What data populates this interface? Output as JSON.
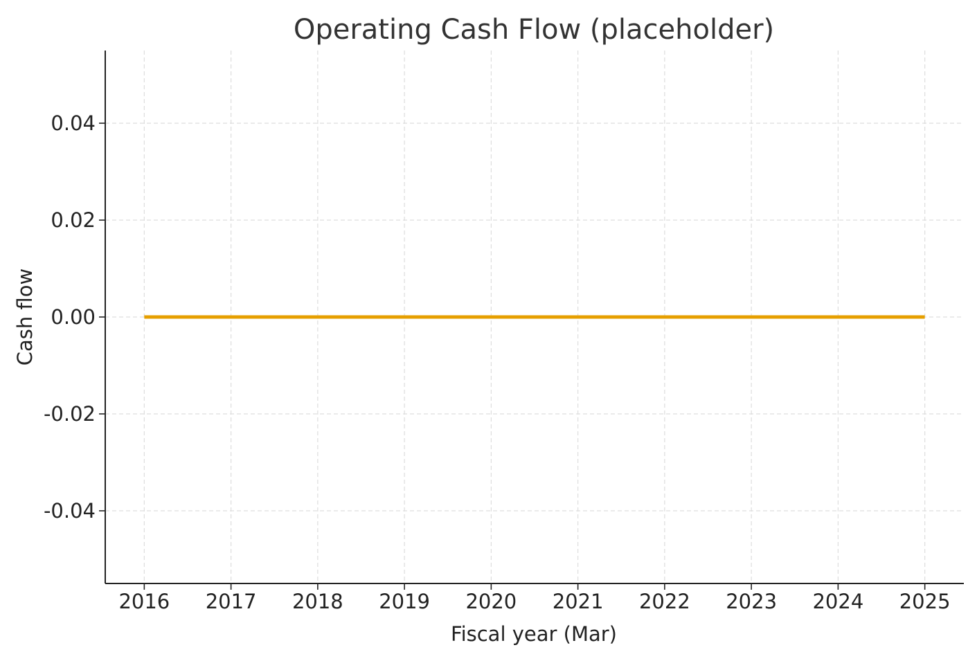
{
  "chart_data": {
    "type": "line",
    "title": "Operating Cash Flow (placeholder)",
    "xlabel": "Fiscal year (Mar)",
    "ylabel": "Cash flow",
    "x": [
      2016,
      2017,
      2018,
      2019,
      2020,
      2021,
      2022,
      2023,
      2024,
      2025
    ],
    "series": [
      {
        "values": [
          0,
          0,
          0,
          0,
          0,
          0,
          0,
          0,
          0,
          0
        ],
        "color": "#E69F00"
      }
    ],
    "xticks": [
      "2016",
      "2017",
      "2018",
      "2019",
      "2020",
      "2021",
      "2022",
      "2023",
      "2024",
      "2025"
    ],
    "yticks": [
      0.04,
      0.02,
      0.0,
      -0.02,
      -0.04
    ],
    "ytick_labels": [
      "0.04",
      "0.02",
      "0.00",
      "-0.02",
      "-0.04"
    ],
    "xlim": [
      2015.55,
      2025.45
    ],
    "ylim": [
      -0.055,
      0.055
    ],
    "grid": true,
    "spines": [
      "left",
      "bottom"
    ]
  }
}
